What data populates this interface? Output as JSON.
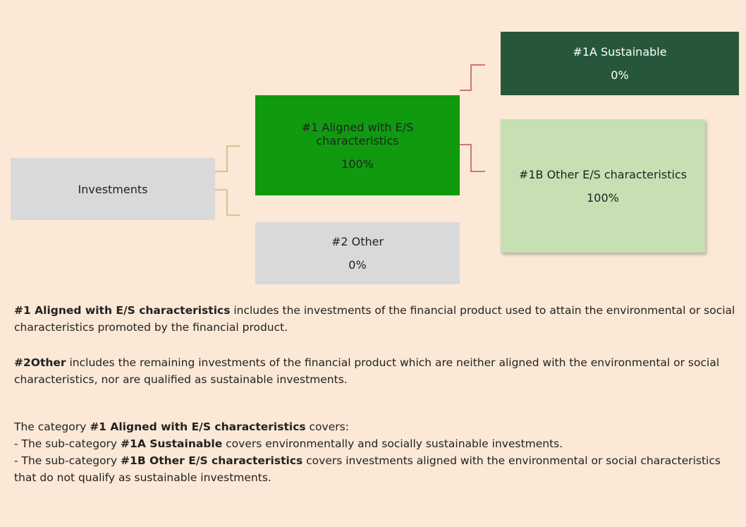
{
  "nodes": [
    {
      "label": "Investments"
    },
    {
      "label": "#1 Aligned with E/S characteristics",
      "value": "100%"
    },
    {
      "label": "#2 Other",
      "value": "0%"
    },
    {
      "label": "#1A Sustainable",
      "value": "0%"
    },
    {
      "label": "#1B Other E/S characteristics",
      "value": "100%"
    }
  ],
  "notes": [
    [
      {
        "text": "#1 Aligned with E/S characteristics",
        "bold": true
      },
      {
        "text": " includes the investments of the financial product used to attain the environmental or social characteristics promoted by the financial product."
      }
    ],
    [
      {
        "text": "#2Other",
        "bold": true
      },
      {
        "text": " includes the remaining investments of the financial product which are neither aligned with the environmental or social characteristics, nor are qualified as sustainable investments."
      }
    ],
    [
      {
        "text": "The category "
      },
      {
        "text": "#1 Aligned with E/S characteristics",
        "bold": true
      },
      {
        "text": " covers:"
      }
    ],
    [
      {
        "text": "- The sub-category "
      },
      {
        "text": "#1A Sustainable",
        "bold": true
      },
      {
        "text": " covers environmentally and socially sustainable investments."
      }
    ],
    [
      {
        "text": "- The sub-category "
      },
      {
        "text": "#1B Other E/S characteristics",
        "bold": true
      },
      {
        "text": " covers investments aligned with the environmental or social characteristics that do not qualify as sustainable investments."
      }
    ]
  ]
}
